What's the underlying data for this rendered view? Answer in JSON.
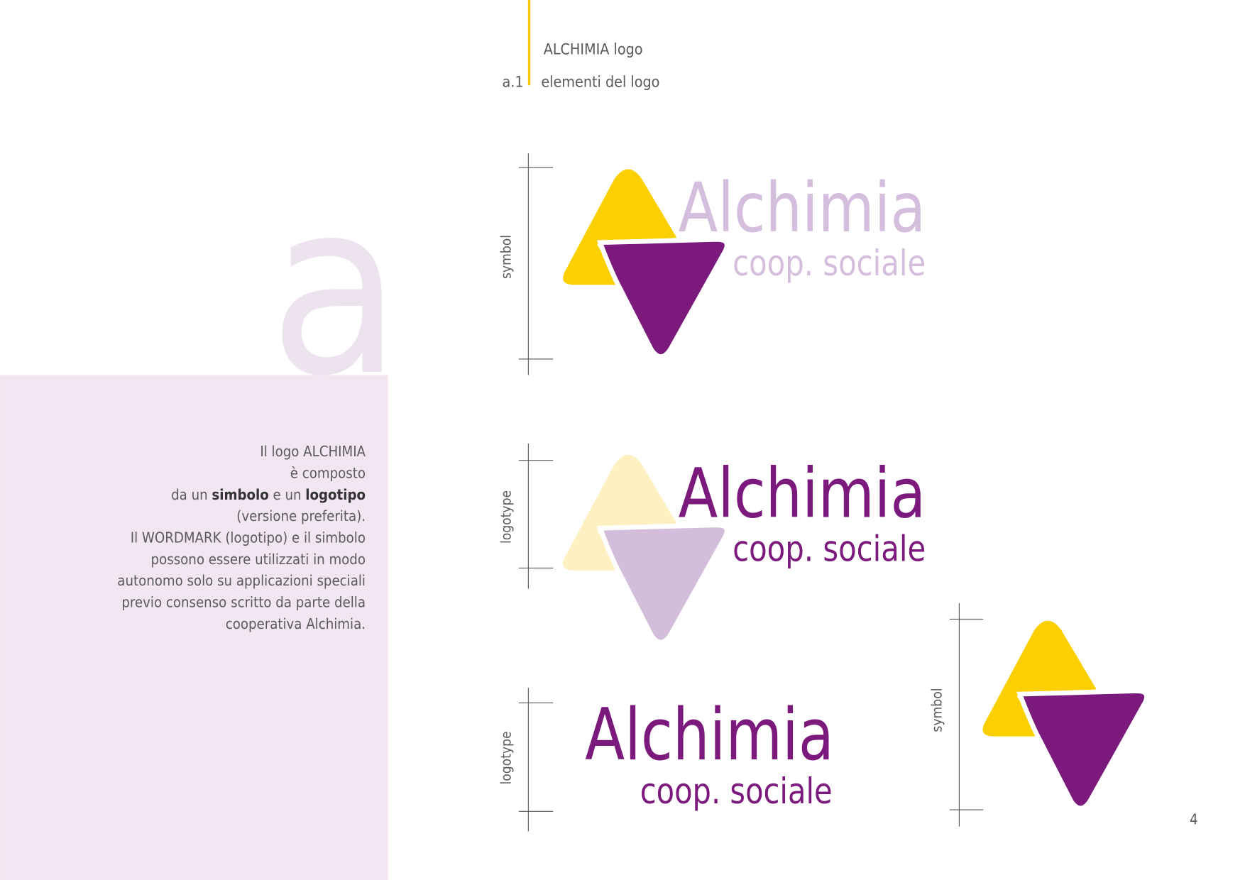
{
  "header": {
    "title": "ALCHIMIA logo",
    "section": "a.1",
    "subtitle": "elementi del logo"
  },
  "big_letter": "a",
  "paragraph": [
    "Il logo ALCHIMIA",
    "è composto",
    [
      "da un ",
      "simbolo",
      " e un ",
      "logotipo"
    ],
    "(versione preferita).",
    "Il WORDMARK (logotipo) e il simbolo",
    "possono essere utilizzati in modo",
    "autonomo solo su applicazioni speciali",
    "previo consenso scritto da parte della",
    "cooperativa Alchimia."
  ],
  "logos": [
    {
      "label": "symbol",
      "name": "Alchimia",
      "tagline": "coop. sociale"
    },
    {
      "label": "logotype",
      "name": "Alchimia",
      "tagline": "coop. sociale"
    },
    {
      "label": "logotype",
      "name": "Alchimia",
      "tagline": "coop. sociale"
    },
    {
      "label": "symbol"
    }
  ],
  "page_number": "4"
}
